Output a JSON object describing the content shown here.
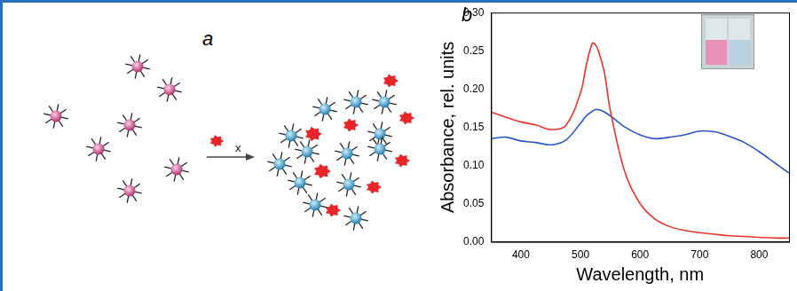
{
  "diagram": {
    "label": "a",
    "arrow_label": "x"
  },
  "chart_data": {
    "type": "line",
    "annotations": [
      "b"
    ],
    "x_label": "Wavelength, nm",
    "y_label": "Absorbance, rel. units",
    "x": [
      350,
      375,
      400,
      425,
      450,
      475,
      500,
      510,
      520,
      525,
      530,
      540,
      550,
      575,
      600,
      625,
      650,
      675,
      700,
      725,
      750,
      775,
      800,
      825,
      850
    ],
    "series": [
      {
        "color": "#e8352a",
        "values": [
          0.17,
          0.163,
          0.157,
          0.153,
          0.147,
          0.152,
          0.195,
          0.232,
          0.26,
          0.258,
          0.25,
          0.222,
          0.172,
          0.09,
          0.05,
          0.03,
          0.02,
          0.015,
          0.012,
          0.01,
          0.008,
          0.007,
          0.006,
          0.005,
          0.005
        ]
      },
      {
        "color": "#2a56c8",
        "values": [
          0.135,
          0.137,
          0.132,
          0.13,
          0.127,
          0.133,
          0.155,
          0.165,
          0.171,
          0.173,
          0.173,
          0.17,
          0.165,
          0.15,
          0.14,
          0.135,
          0.137,
          0.14,
          0.145,
          0.144,
          0.138,
          0.13,
          0.118,
          0.104,
          0.09
        ]
      }
    ],
    "xlim": [
      350,
      850
    ],
    "xticks": [
      400,
      500,
      600,
      700,
      800
    ],
    "ylim": [
      0,
      0.3
    ],
    "yticks": [
      {
        "value": 0,
        "label": "0.00"
      },
      {
        "value": 0.05,
        "label": "0.05"
      },
      {
        "value": 0.1,
        "label": "0.10"
      },
      {
        "value": 0.15,
        "label": "0.15"
      },
      {
        "value": 0.2,
        "label": "0.20"
      },
      {
        "value": 0.25,
        "label": "0.25"
      },
      {
        "value": 0.3,
        "label": "0.30"
      }
    ],
    "grid": false
  }
}
